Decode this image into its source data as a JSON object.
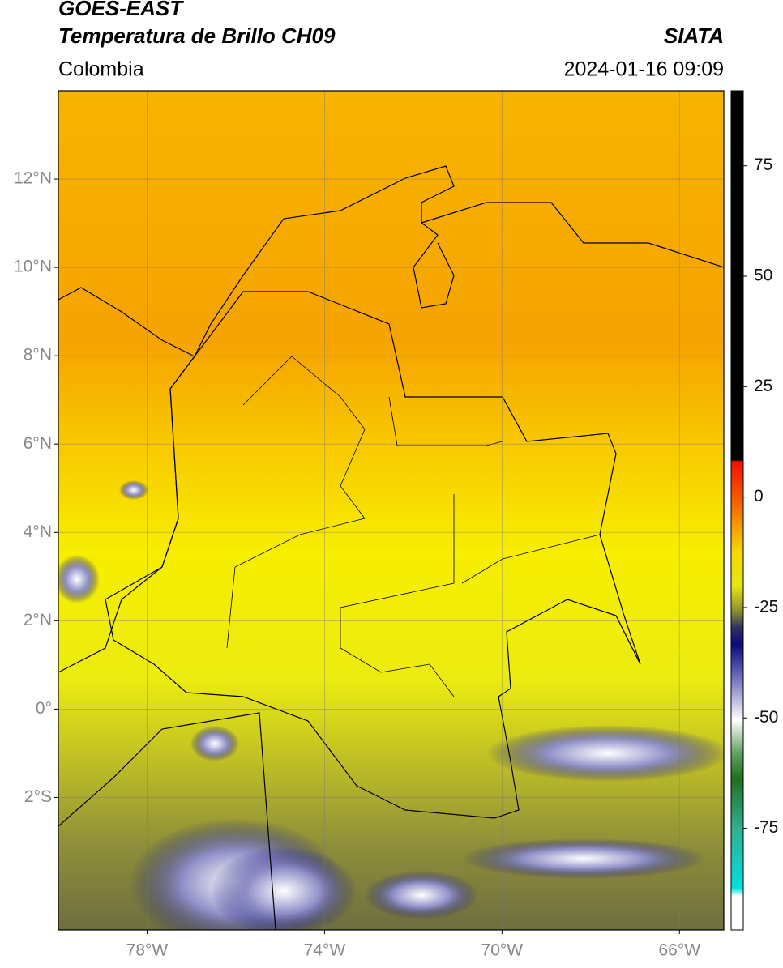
{
  "header": {
    "title_line1": "GOES-EAST",
    "title_line2": "Temperatura de Brillo CH09",
    "subtitle": "Colombia",
    "agency": "SIATA",
    "datetime": "2024-01-16 09:09"
  },
  "map": {
    "lon_range": [
      -80,
      -65
    ],
    "lat_range": [
      -5,
      14
    ],
    "lon_ticks": [
      {
        "value": -78,
        "label": "78°W"
      },
      {
        "value": -74,
        "label": "74°W"
      },
      {
        "value": -70,
        "label": "70°W"
      },
      {
        "value": -66,
        "label": "66°W"
      }
    ],
    "lat_ticks": [
      {
        "value": 12,
        "label": "12°N"
      },
      {
        "value": 10,
        "label": "10°N"
      },
      {
        "value": 8,
        "label": "8°N"
      },
      {
        "value": 6,
        "label": "6°N"
      },
      {
        "value": 4,
        "label": "4°N"
      },
      {
        "value": 2,
        "label": "2°N"
      },
      {
        "value": 0,
        "label": "0°"
      },
      {
        "value": -2,
        "label": "2°S"
      }
    ]
  },
  "colorbar": {
    "range": [
      -98,
      92
    ],
    "ticks": [
      75,
      50,
      25,
      0,
      -25,
      -50,
      -75
    ]
  }
}
